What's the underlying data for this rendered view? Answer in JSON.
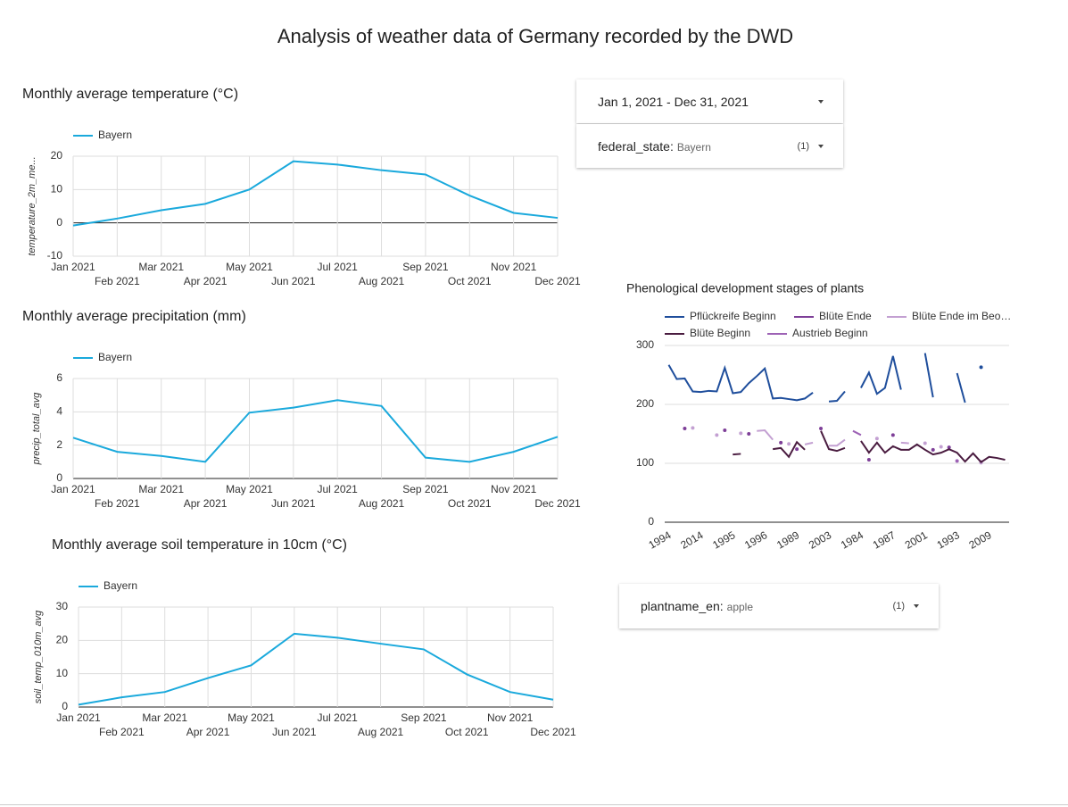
{
  "title": "Analysis of weather data of Germany recorded by the DWD",
  "controls": {
    "date_range": "Jan 1, 2021 - Dec 31, 2021",
    "filters": [
      {
        "label": "federal_state:",
        "value": "Bayern",
        "count": "(1)"
      },
      {
        "label": "plantname_en:",
        "value": "apple",
        "count": "(1)"
      }
    ]
  },
  "chart_data": [
    {
      "type": "line",
      "title": "Monthly average temperature (°C)",
      "y_label": "temperature_2m_me...",
      "categories": [
        "Jan 2021",
        "Feb 2021",
        "Mar 2021",
        "Apr 2021",
        "May 2021",
        "Jun 2021",
        "Jul 2021",
        "Aug 2021",
        "Sep 2021",
        "Oct 2021",
        "Nov 2021",
        "Dec 2021"
      ],
      "series": [
        {
          "name": "Bayern",
          "color": "#1aa9dc",
          "values": [
            -0.8,
            1.3,
            3.8,
            5.7,
            10,
            18.5,
            17.5,
            15.8,
            14.5,
            8.2,
            3,
            1.5
          ]
        }
      ],
      "ylim": [
        -10,
        20
      ],
      "yticks": [
        -10,
        0,
        10,
        20
      ],
      "grid": true,
      "vgrid": true
    },
    {
      "type": "line",
      "title": "Monthly average precipitation (mm)",
      "y_label": "precip_total_avg",
      "categories": [
        "Jan 2021",
        "Feb 2021",
        "Mar 2021",
        "Apr 2021",
        "May 2021",
        "Jun 2021",
        "Jul 2021",
        "Aug 2021",
        "Sep 2021",
        "Oct 2021",
        "Nov 2021",
        "Dec 2021"
      ],
      "series": [
        {
          "name": "Bayern",
          "color": "#1aa9dc",
          "values": [
            2.45,
            1.6,
            1.35,
            1.0,
            3.95,
            4.25,
            4.7,
            4.35,
            1.25,
            1.0,
            1.6,
            2.5
          ]
        }
      ],
      "ylim": [
        0,
        6
      ],
      "yticks": [
        0,
        2,
        4,
        6
      ],
      "grid": true,
      "vgrid": true
    },
    {
      "type": "line",
      "title": "Monthly average soil temperature in 10cm (°C)",
      "y_label": "soil_temp_010m_avg",
      "categories": [
        "Jan 2021",
        "Feb 2021",
        "Mar 2021",
        "Apr 2021",
        "May 2021",
        "Jun 2021",
        "Jul 2021",
        "Aug 2021",
        "Sep 2021",
        "Oct 2021",
        "Nov 2021",
        "Dec 2021"
      ],
      "series": [
        {
          "name": "Bayern",
          "color": "#1aa9dc",
          "values": [
            0.7,
            2.9,
            4.5,
            8.7,
            12.5,
            22,
            20.8,
            19,
            17.3,
            9.8,
            4.5,
            2.2
          ]
        }
      ],
      "ylim": [
        0,
        30
      ],
      "yticks": [
        0,
        10,
        20,
        30
      ],
      "grid": true,
      "vgrid": true
    },
    {
      "type": "line",
      "title": "Phenological development stages of plants",
      "categories": [
        "1994",
        null,
        null,
        null,
        "2014",
        null,
        null,
        null,
        "1995",
        null,
        null,
        null,
        "1996",
        null,
        null,
        null,
        "1989",
        null,
        null,
        null,
        "2003",
        null,
        null,
        null,
        "1984",
        null,
        null,
        null,
        "1987",
        null,
        null,
        null,
        "2001",
        null,
        null,
        null,
        "1993",
        null,
        null,
        null,
        "2009",
        null,
        null
      ],
      "series": [
        {
          "name": "Pflückreife Beginn",
          "color": "#1f4e9c",
          "values": [
            267,
            243,
            244,
            222,
            221,
            223,
            222,
            262,
            219,
            221,
            236,
            248,
            261,
            210,
            211,
            209,
            207,
            210,
            220,
            null,
            205,
            206,
            222,
            null,
            228,
            254,
            218,
            228,
            282,
            225,
            null,
            null,
            287,
            212,
            null,
            null,
            253,
            203,
            null,
            263,
            null,
            null,
            null
          ]
        },
        {
          "name": "Blüte Ende",
          "color": "#7e3f98",
          "values": [
            null,
            null,
            159,
            null,
            null,
            null,
            null,
            156,
            null,
            null,
            150,
            null,
            null,
            null,
            135,
            null,
            124,
            null,
            null,
            159,
            null,
            null,
            null,
            null,
            null,
            106,
            null,
            null,
            148,
            null,
            null,
            null,
            null,
            123,
            null,
            127,
            null,
            null,
            null,
            102,
            null,
            null,
            null
          ]
        },
        {
          "name": "Blüte Ende im Beo…",
          "color": "#c3a0d2",
          "values": [
            null,
            null,
            null,
            160,
            null,
            null,
            148,
            null,
            null,
            151,
            null,
            155,
            156,
            140,
            null,
            133,
            null,
            132,
            135,
            null,
            130,
            130,
            140,
            null,
            null,
            null,
            142,
            null,
            null,
            135,
            134,
            null,
            134,
            null,
            128,
            null,
            null,
            null,
            null,
            101,
            null,
            null,
            null
          ]
        },
        {
          "name": "Blüte Beginn",
          "color": "#4a1c40",
          "values": [
            null,
            null,
            null,
            null,
            null,
            null,
            null,
            null,
            115,
            116,
            null,
            null,
            null,
            124,
            126,
            111,
            136,
            123,
            null,
            155,
            124,
            121,
            126,
            null,
            138,
            118,
            135,
            118,
            129,
            123,
            123,
            132,
            123,
            115,
            118,
            124,
            118,
            103,
            117,
            102,
            111,
            109,
            106
          ]
        },
        {
          "name": "Austrieb Beginn",
          "color": "#9d62b5",
          "values": [
            null,
            null,
            null,
            null,
            null,
            null,
            null,
            null,
            null,
            null,
            null,
            null,
            null,
            null,
            null,
            null,
            null,
            null,
            null,
            null,
            null,
            null,
            null,
            155,
            148,
            null,
            null,
            null,
            null,
            null,
            null,
            null,
            null,
            null,
            null,
            null,
            104,
            null,
            null,
            null,
            null,
            null,
            null
          ]
        }
      ],
      "ylim": [
        0,
        300
      ],
      "yticks": [
        0,
        100,
        200,
        300
      ],
      "grid": true,
      "vgrid": false
    }
  ]
}
